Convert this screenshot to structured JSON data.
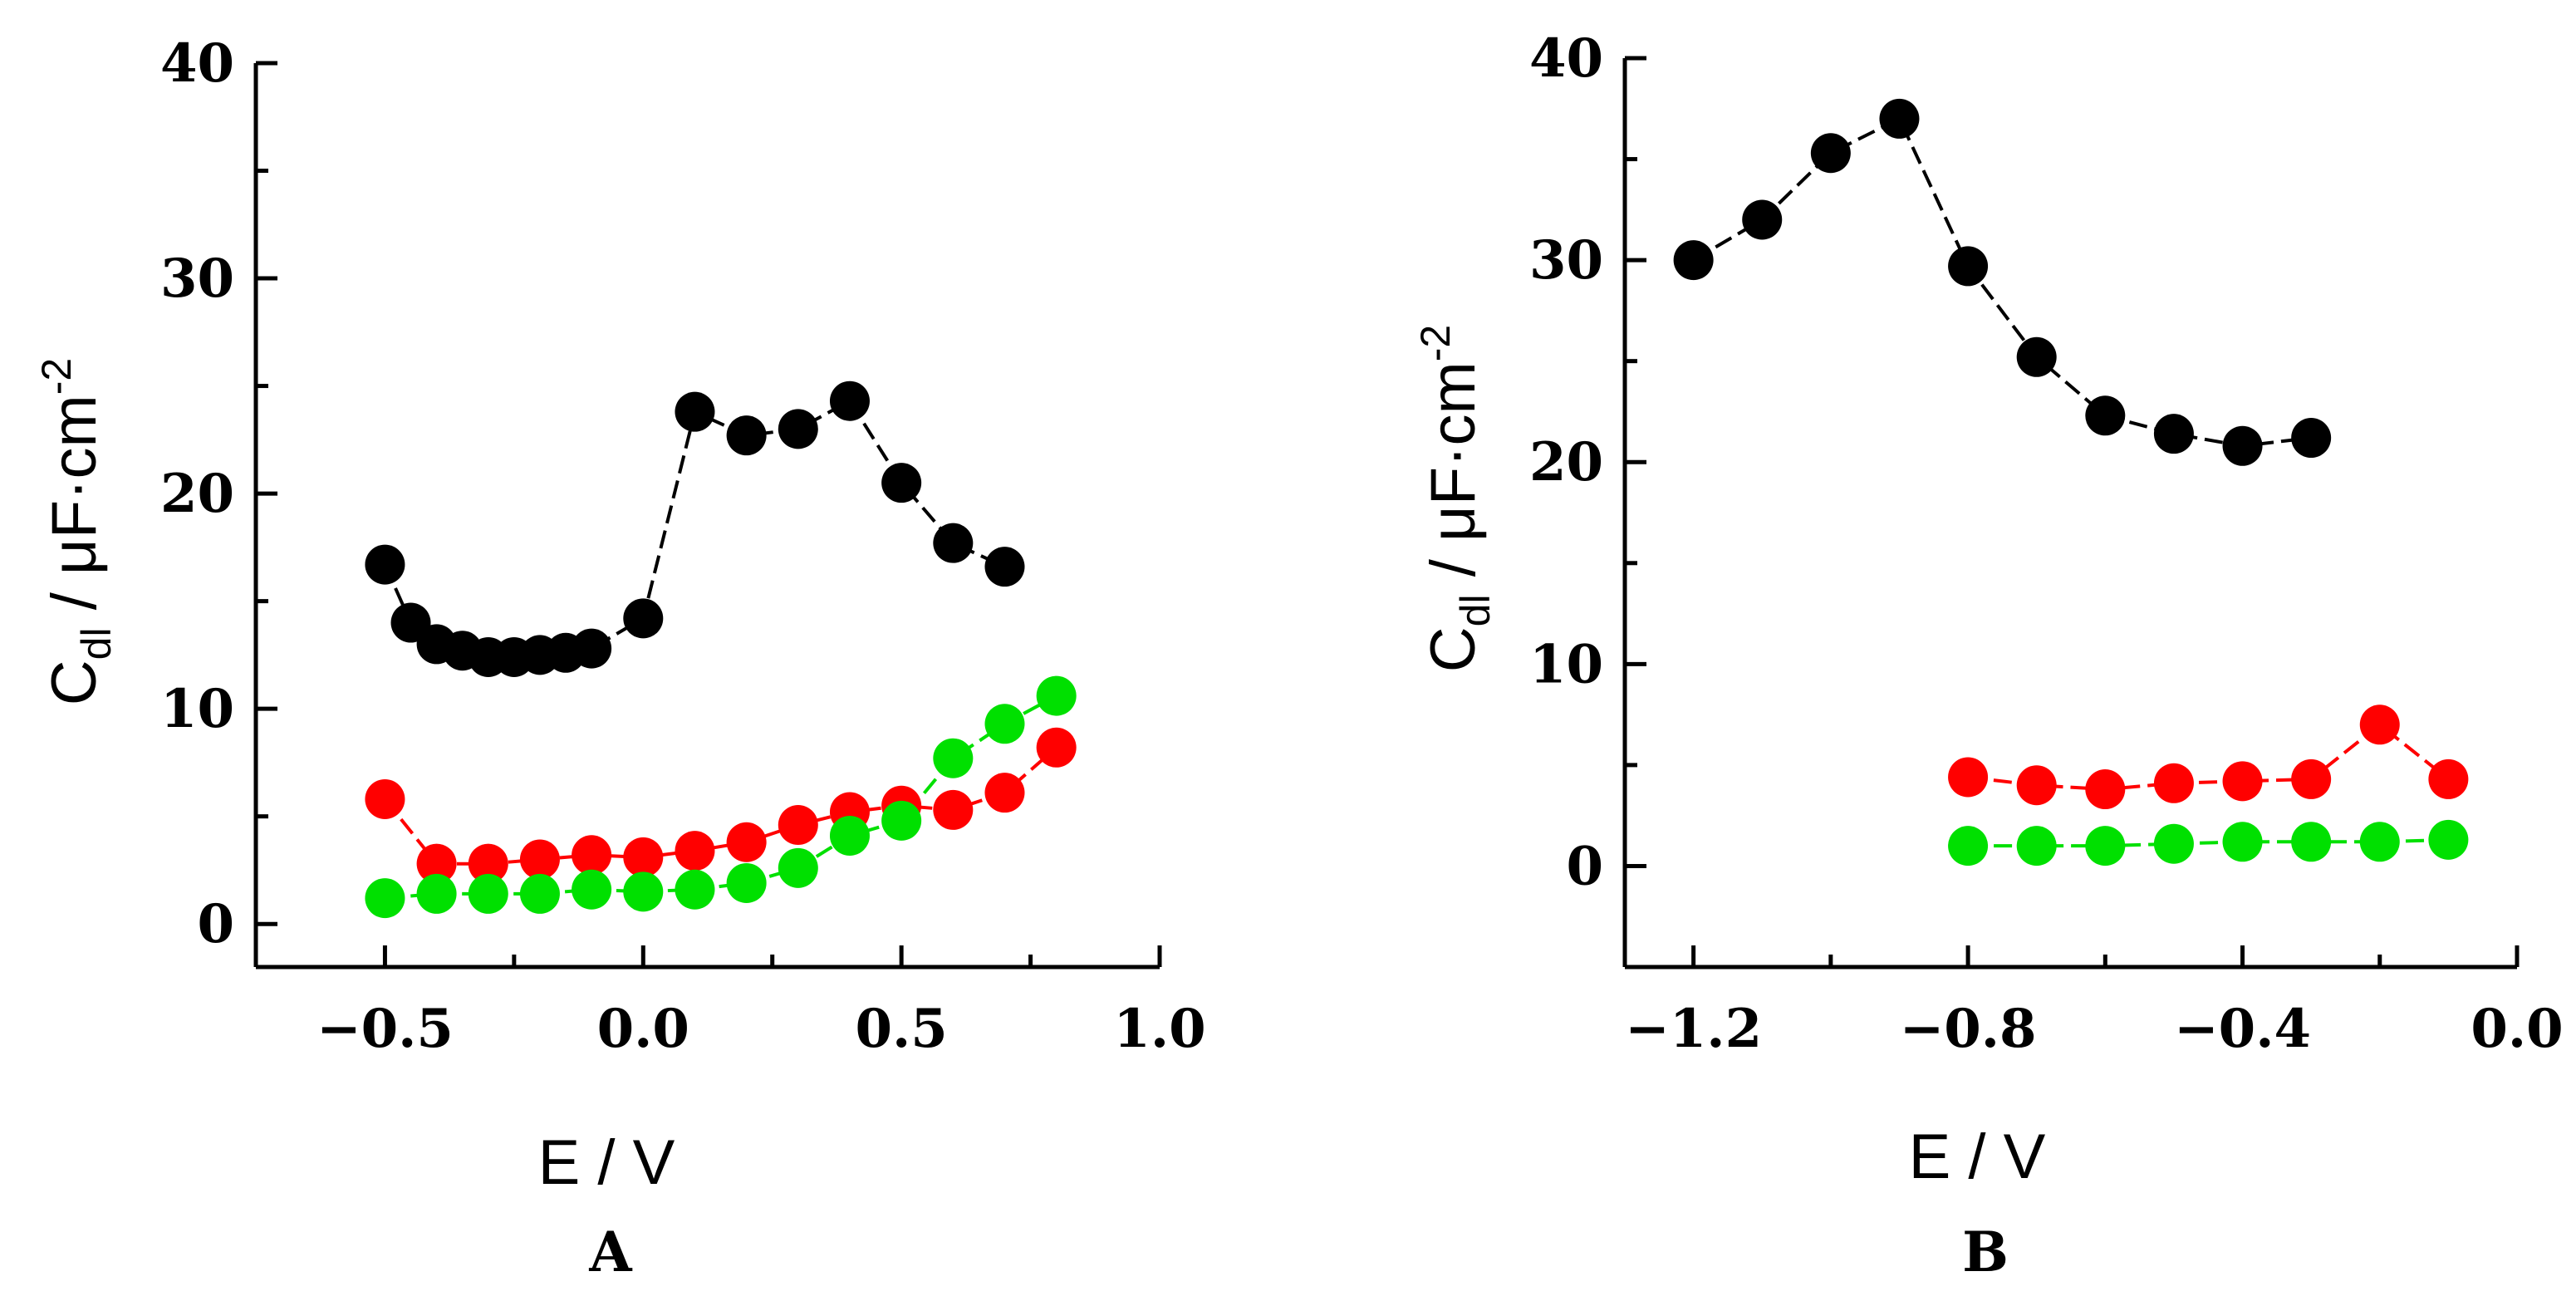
{
  "chart_data": [
    {
      "type": "scatter",
      "panel_label": "A",
      "xlabel": "E / V",
      "ylabel": {
        "main": "C",
        "sub": "dl",
        "mid": " / μF·cm",
        "sup": "-2"
      },
      "xlim": [
        -0.75,
        1.0
      ],
      "ylim": [
        -2,
        40
      ],
      "xticks": [
        -0.5,
        0.0,
        0.5,
        1.0
      ],
      "xtick_labels": [
        "−0.5",
        "0.0",
        "0.5",
        "1.0"
      ],
      "yticks": [
        0,
        10,
        20,
        30,
        40
      ],
      "ytick_labels": [
        "0",
        "10",
        "20",
        "30",
        "40"
      ],
      "series": [
        {
          "name": "black",
          "color": "#000000",
          "x": [
            -0.5,
            -0.45,
            -0.4,
            -0.35,
            -0.3,
            -0.25,
            -0.2,
            -0.15,
            -0.1,
            0.0,
            0.1,
            0.2,
            0.3,
            0.4,
            0.5,
            0.6,
            0.7
          ],
          "y": [
            16.7,
            14.0,
            13.0,
            12.7,
            12.4,
            12.4,
            12.5,
            12.6,
            12.8,
            14.2,
            23.8,
            22.7,
            23.0,
            24.3,
            20.5,
            17.7,
            16.6
          ],
          "line_style": "dashed"
        },
        {
          "name": "red",
          "color": "#ff0000",
          "x": [
            -0.5,
            -0.4,
            -0.3,
            -0.2,
            -0.1,
            0.0,
            0.1,
            0.2,
            0.3,
            0.4,
            0.5,
            0.6,
            0.7,
            0.8
          ],
          "y": [
            5.8,
            2.8,
            2.8,
            3.0,
            3.2,
            3.1,
            3.4,
            3.8,
            4.6,
            5.2,
            5.5,
            5.3,
            6.1,
            8.2
          ],
          "line_style": "dashed"
        },
        {
          "name": "green",
          "color": "#00e000",
          "x": [
            -0.5,
            -0.4,
            -0.3,
            -0.2,
            -0.1,
            0.0,
            0.1,
            0.2,
            0.3,
            0.4,
            0.5,
            0.6,
            0.7,
            0.8
          ],
          "y": [
            1.2,
            1.4,
            1.4,
            1.4,
            1.6,
            1.5,
            1.6,
            1.9,
            2.6,
            4.1,
            4.8,
            7.7,
            9.3,
            10.6
          ],
          "line_style": "dashed"
        }
      ]
    },
    {
      "type": "scatter",
      "panel_label": "B",
      "xlabel": "E / V",
      "ylabel": {
        "main": "C",
        "sub": "dl",
        "mid": " / μF·cm",
        "sup": "-2"
      },
      "xlim": [
        -1.3,
        0.0
      ],
      "ylim": [
        -5,
        40
      ],
      "xticks": [
        -1.2,
        -0.8,
        -0.4,
        0.0
      ],
      "xtick_labels": [
        "−1.2",
        "−0.8",
        "−0.4",
        "0.0"
      ],
      "yticks": [
        0,
        10,
        20,
        30,
        40
      ],
      "ytick_labels": [
        "0",
        "10",
        "20",
        "30",
        "40"
      ],
      "series": [
        {
          "name": "black",
          "color": "#000000",
          "x": [
            -1.2,
            -1.1,
            -1.0,
            -0.9,
            -0.8,
            -0.7,
            -0.6,
            -0.5,
            -0.4,
            -0.3
          ],
          "y": [
            30.0,
            32.0,
            35.3,
            37.0,
            29.7,
            25.2,
            22.3,
            21.4,
            20.8,
            21.2
          ],
          "line_style": "dashed"
        },
        {
          "name": "red",
          "color": "#ff0000",
          "x": [
            -0.8,
            -0.7,
            -0.6,
            -0.5,
            -0.4,
            -0.3,
            -0.2,
            -0.1
          ],
          "y": [
            4.4,
            4.0,
            3.8,
            4.1,
            4.2,
            4.3,
            7.0,
            4.3
          ],
          "line_style": "dashed"
        },
        {
          "name": "green",
          "color": "#00e000",
          "x": [
            -0.8,
            -0.7,
            -0.6,
            -0.5,
            -0.4,
            -0.3,
            -0.2,
            -0.1
          ],
          "y": [
            1.0,
            1.0,
            1.0,
            1.1,
            1.2,
            1.2,
            1.2,
            1.3
          ],
          "line_style": "dashed"
        }
      ]
    }
  ]
}
